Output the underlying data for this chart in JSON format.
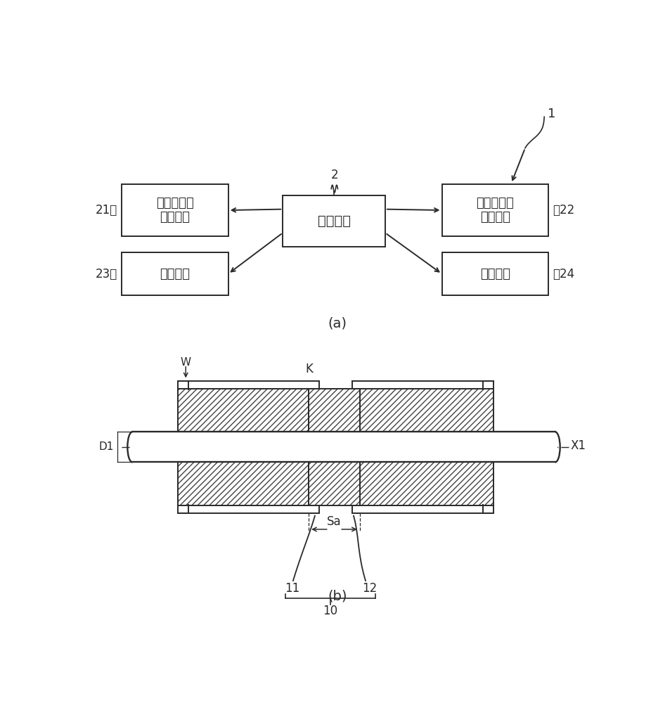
{
  "bg_color": "#ffffff",
  "line_color": "#2a2a2a",
  "hatch_color": "#444444",
  "lw": 1.4,
  "alw": 1.4,
  "texts": {
    "ctrl": "控制装置",
    "b21": "第一模具用\n驱动电机",
    "b22": "第二模具用\n驱动电机",
    "b23": "滑动机构",
    "b24": "倾斜机构",
    "tag21": "21～",
    "tag22": "～22",
    "tag23": "23～",
    "tag24": "～24",
    "label2": "2",
    "label1": "1",
    "label_a": "(a)",
    "label_b": "(b)",
    "X1": "X1",
    "D1": "D1",
    "W": "W",
    "K": "K",
    "Sa": "Sa",
    "n10": "10",
    "n11": "11",
    "n12": "12"
  }
}
